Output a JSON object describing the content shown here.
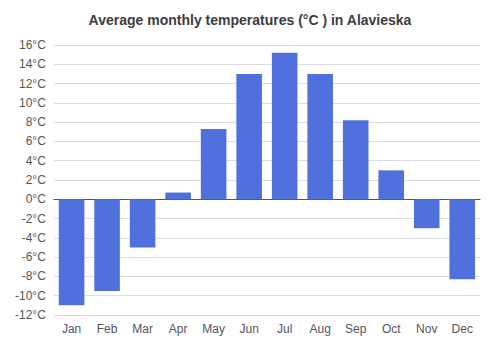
{
  "chart_data": {
    "type": "bar",
    "title": "Average monthly temperatures (°C ) in Alavieska",
    "categories": [
      "Jan",
      "Feb",
      "Mar",
      "Apr",
      "May",
      "Jun",
      "Jul",
      "Aug",
      "Sep",
      "Oct",
      "Nov",
      "Dec"
    ],
    "values": [
      -11.0,
      -9.5,
      -5.0,
      0.7,
      7.3,
      13.0,
      15.2,
      13.0,
      8.2,
      3.0,
      -3.0,
      -8.3
    ],
    "ylim": [
      -12,
      16
    ],
    "yticks": [
      {
        "value": -12,
        "label": "-12°C"
      },
      {
        "value": -10,
        "label": "-10°C"
      },
      {
        "value": -8,
        "label": "-8°C"
      },
      {
        "value": -6,
        "label": "-6°C"
      },
      {
        "value": -4,
        "label": "-4°C"
      },
      {
        "value": -2,
        "label": "-2°C"
      },
      {
        "value": 0,
        "label": "0°C"
      },
      {
        "value": 2,
        "label": "2°C"
      },
      {
        "value": 4,
        "label": "4°C"
      },
      {
        "value": 6,
        "label": "6°C"
      },
      {
        "value": 8,
        "label": "8°C"
      },
      {
        "value": 10,
        "label": "10°C"
      },
      {
        "value": 12,
        "label": "12°C"
      },
      {
        "value": 14,
        "label": "14°C"
      },
      {
        "value": 16,
        "label": "16°C"
      }
    ],
    "grid": true
  }
}
